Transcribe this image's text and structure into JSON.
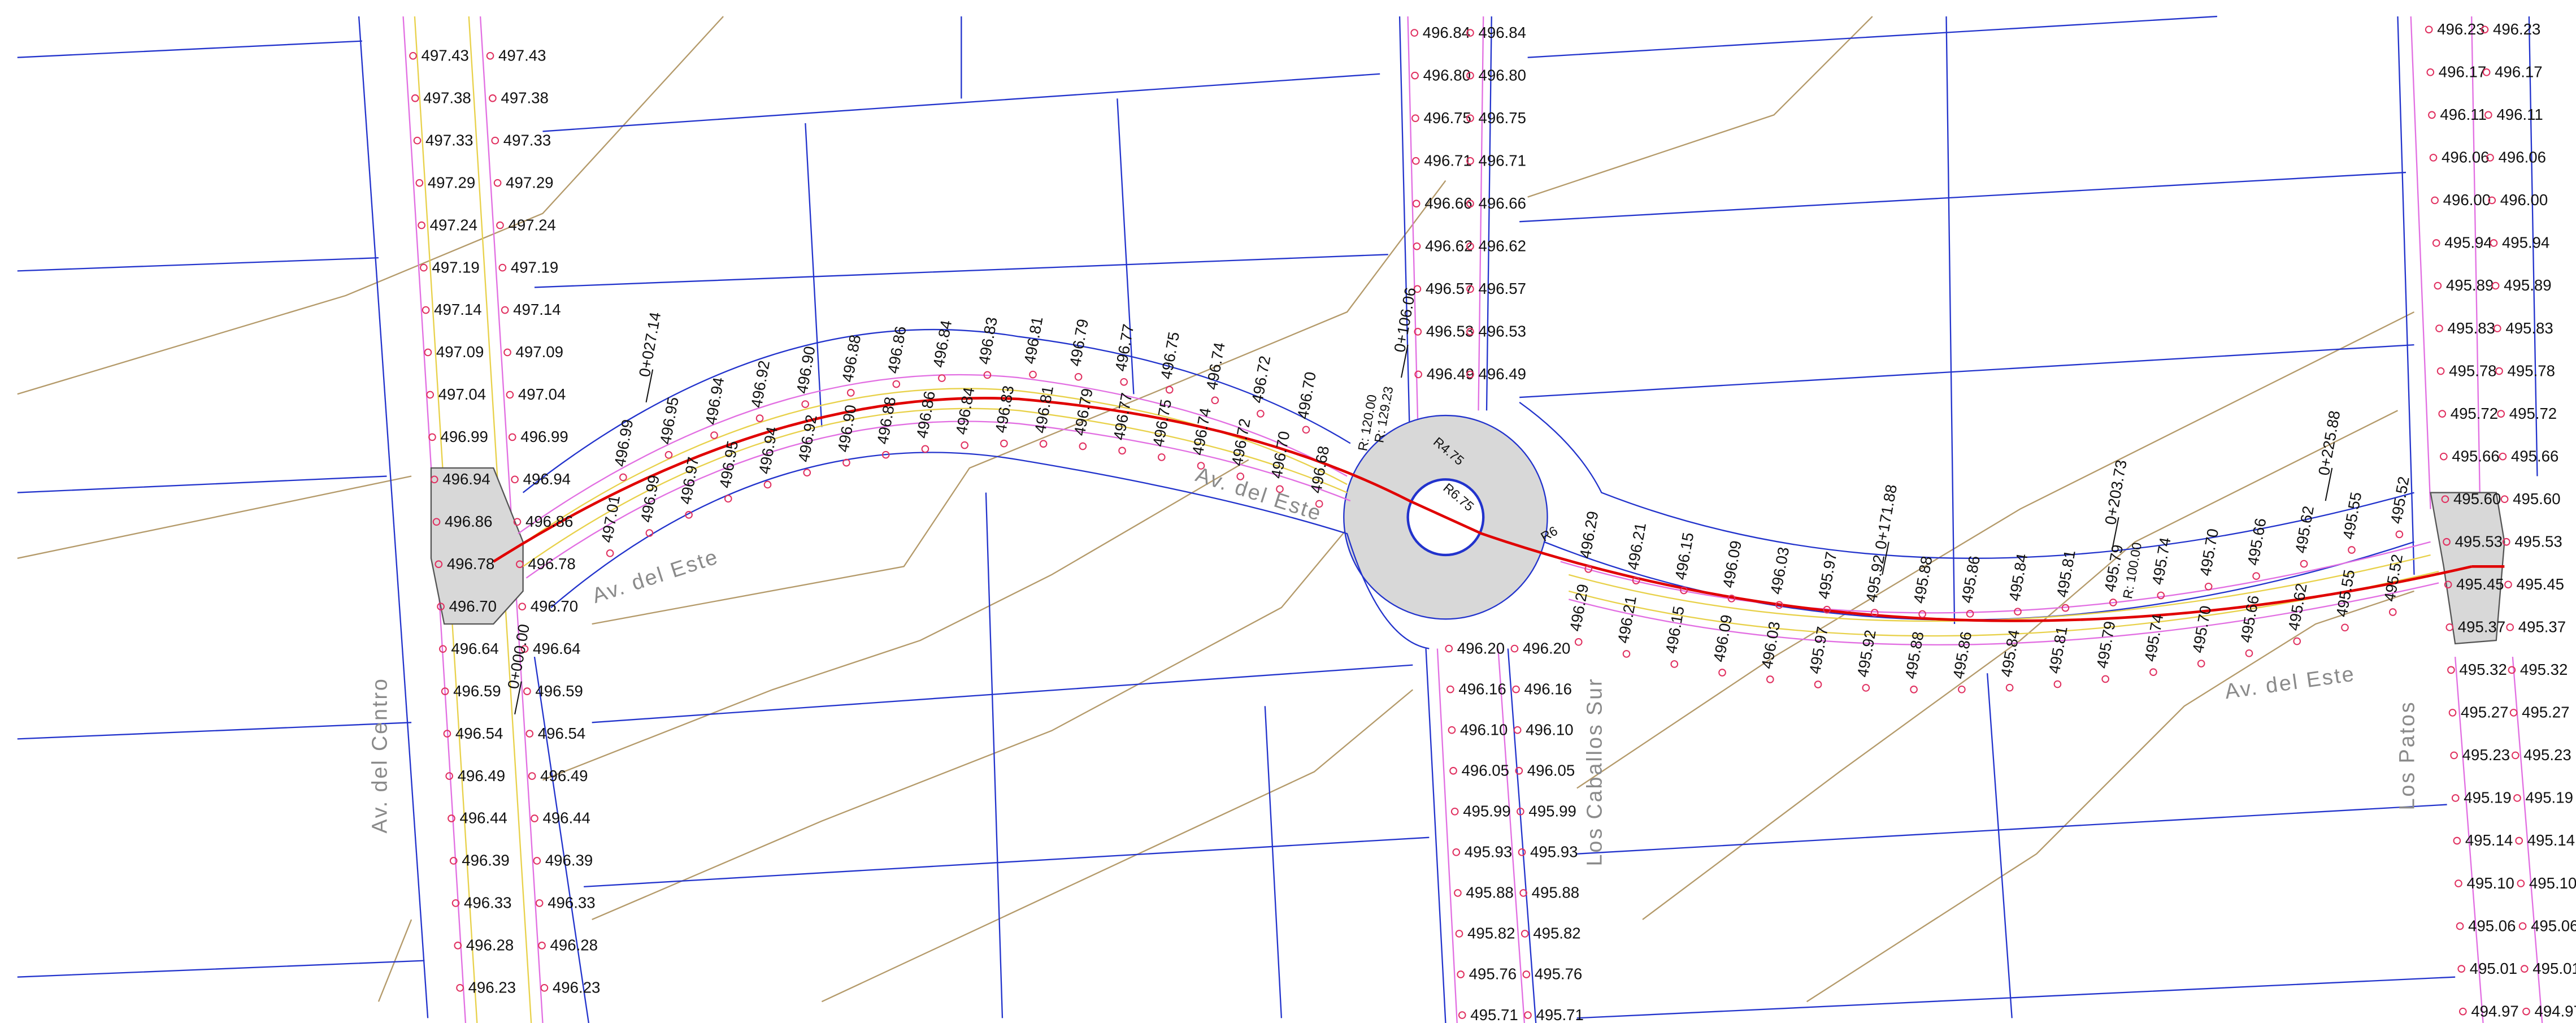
{
  "street_names": [
    "Av. del Centro",
    "Av. del Este",
    "Av. del Este",
    "Av. del Este",
    "Los Caballos Sur",
    "Los Patos"
  ],
  "elevations": {
    "west": [
      "497.43",
      "497.38",
      "497.33",
      "497.29",
      "497.24",
      "497.19",
      "497.14",
      "497.09",
      "497.04",
      "496.99",
      "496.94",
      "496.86",
      "496.78",
      "496.70",
      "496.64",
      "496.59",
      "496.54",
      "496.49",
      "496.44",
      "496.39",
      "496.33",
      "496.28",
      "496.23"
    ],
    "central_north": [
      "496.84",
      "496.80",
      "496.75",
      "496.71",
      "496.66",
      "496.62",
      "496.57",
      "496.53",
      "496.49"
    ],
    "central_south": [
      "496.20",
      "496.16",
      "496.10",
      "496.05",
      "495.99",
      "495.93",
      "495.88",
      "495.82",
      "495.76",
      "495.71"
    ],
    "east": [
      "496.23",
      "496.17",
      "496.11",
      "496.06",
      "496.00",
      "495.94",
      "495.89",
      "495.83",
      "495.78",
      "495.72",
      "495.66",
      "495.60",
      "495.53",
      "495.45",
      "495.37",
      "495.32",
      "495.27",
      "495.23",
      "495.19",
      "495.14",
      "495.10",
      "495.06",
      "495.01",
      "494.97"
    ]
  },
  "road_labels": {
    "west_upper": [
      "496.99",
      "496.95",
      "496.94",
      "496.92",
      "496.90",
      "496.88",
      "496.86",
      "496.84",
      "496.83",
      "496.81",
      "496.79",
      "496.77",
      "496.75",
      "496.74",
      "496.72",
      "496.70"
    ],
    "west_lower": [
      "497.01",
      "496.99",
      "496.97",
      "496.95",
      "496.94",
      "496.92",
      "496.90",
      "496.88",
      "496.86",
      "496.84",
      "496.83",
      "496.81",
      "496.79",
      "496.77",
      "496.75",
      "496.74",
      "496.72",
      "496.70",
      "496.68"
    ],
    "east": [
      "496.29",
      "496.21",
      "496.15",
      "496.09",
      "496.03",
      "495.97",
      "495.92",
      "495.88",
      "495.86",
      "495.84",
      "495.81",
      "495.79",
      "495.74",
      "495.70",
      "495.66",
      "495.62",
      "495.55",
      "495.52"
    ]
  },
  "stations": [
    "0+000.00",
    "0+027.14",
    "0+106.06",
    "0+171.88",
    "0+203.73",
    "0+225.88"
  ],
  "radii": [
    "R: 120.00",
    "R: 129.23",
    "R: 100.00",
    "R6.75",
    "R4.75",
    "R6"
  ]
}
